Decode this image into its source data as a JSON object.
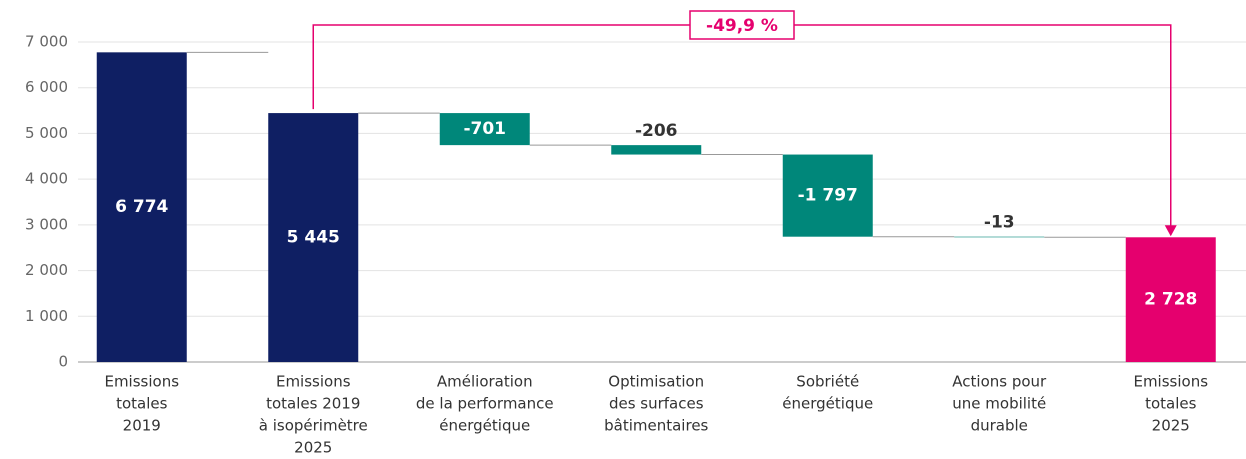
{
  "chart_data": {
    "type": "waterfall",
    "categories": [
      [
        "Emissions",
        "totales",
        "2019"
      ],
      [
        "Emissions",
        "totales 2019",
        "à isopérimètre",
        "2025"
      ],
      [
        "Amélioration",
        "de la performance",
        "énergétique"
      ],
      [
        "Optimisation",
        "des surfaces",
        "bâtimentaires"
      ],
      [
        "Sobriété",
        "énergétique"
      ],
      [
        "Actions pour",
        "une mobilité",
        "durable"
      ],
      [
        "Emissions",
        "totales",
        "2025"
      ]
    ],
    "values": [
      6774,
      5445,
      -701,
      -206,
      -1797,
      -13,
      2728
    ],
    "value_labels": [
      "6 774",
      "5 445",
      "-701",
      "-206",
      "-1 797",
      "-13",
      "2 728"
    ],
    "measures": [
      "total",
      "total",
      "relative",
      "relative",
      "relative",
      "relative",
      "total"
    ],
    "colors": [
      "#0f1f63",
      "#0f1f63",
      "#00877a",
      "#00877a",
      "#00877a",
      "#00877a",
      "#e5006e"
    ],
    "annotation": "-49,9 %",
    "ylim": [
      0,
      7000
    ],
    "yticks": [
      0,
      {
        "value": 1000,
        "label": "1 000"
      },
      {
        "value": 2000,
        "label": "2 000"
      },
      {
        "value": 3000,
        "label": "3 000"
      },
      {
        "value": 4000,
        "label": "4 000"
      },
      {
        "value": 5000,
        "label": "5 000"
      },
      {
        "value": 6000,
        "label": "6 000"
      },
      {
        "value": 7000,
        "label": "7 000"
      }
    ],
    "grid": true
  }
}
